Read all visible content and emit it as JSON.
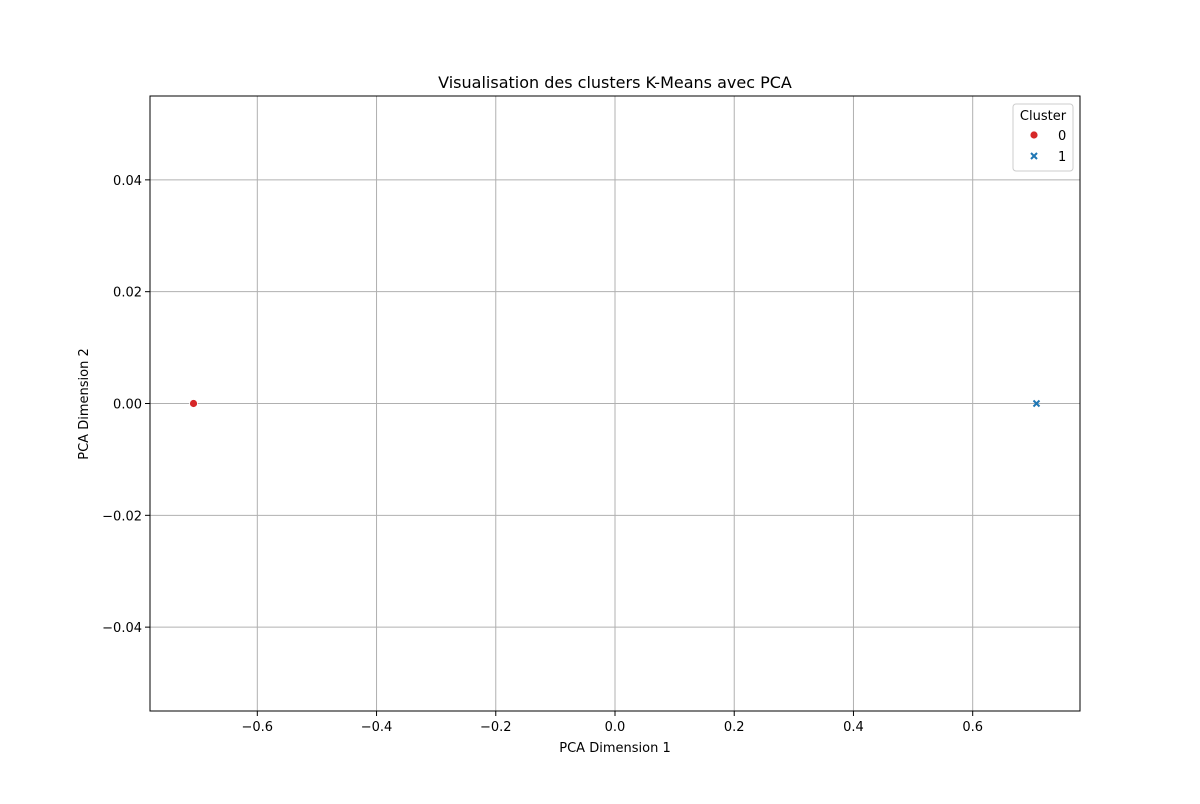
{
  "chart_data": {
    "type": "scatter",
    "title": "Visualisation des clusters K-Means avec PCA",
    "xlabel": "PCA Dimension 1",
    "ylabel": "PCA Dimension 2",
    "xlim": [
      -0.78,
      0.78
    ],
    "ylim": [
      -0.055,
      0.055
    ],
    "xticks": [
      -0.6,
      -0.4,
      -0.2,
      0.0,
      0.2,
      0.4,
      0.6
    ],
    "xtick_labels": [
      "−0.6",
      "−0.4",
      "−0.2",
      "0.0",
      "0.2",
      "0.4",
      "0.6"
    ],
    "yticks": [
      -0.04,
      -0.02,
      0.0,
      0.02,
      0.04
    ],
    "ytick_labels": [
      "−0.04",
      "−0.02",
      "0.00",
      "0.02",
      "0.04"
    ],
    "grid": true,
    "legend": {
      "title": "Cluster",
      "placement": "top-right"
    },
    "series": [
      {
        "name": "0",
        "marker": "circle",
        "color": "#d62728",
        "points": [
          {
            "x": -0.707,
            "y": 0.0
          }
        ]
      },
      {
        "name": "1",
        "marker": "x",
        "color": "#1f77b4",
        "points": [
          {
            "x": 0.707,
            "y": 0.0
          }
        ]
      }
    ]
  }
}
